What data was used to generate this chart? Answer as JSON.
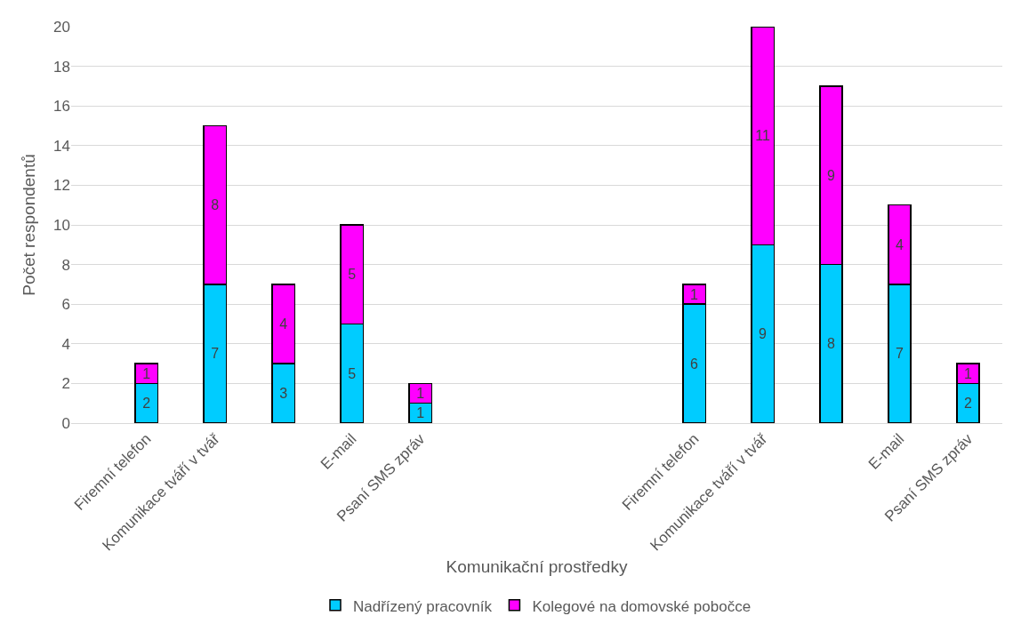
{
  "chart_data": {
    "type": "bar",
    "stacked": true,
    "ylabel": "Počet respondentů",
    "xlabel": "Komunikační prostředky",
    "categories": [
      "Firemní telefon",
      "Komunikace tváří v tvář",
      null,
      "E-mail",
      "Psaní SMS zpráv",
      null,
      null,
      null,
      "Firemní telefon",
      "Komunikace tváří v tvář",
      null,
      "E-mail",
      "Psaní SMS zpráv"
    ],
    "series": [
      {
        "name": "Nadřízený pracovník",
        "color": "#00ccff",
        "values": [
          2,
          7,
          3,
          5,
          1,
          null,
          null,
          null,
          6,
          9,
          8,
          7,
          2
        ]
      },
      {
        "name": "Kolegové na domovské pobočce",
        "color": "#ff00ff",
        "values": [
          1,
          8,
          4,
          5,
          1,
          null,
          null,
          null,
          1,
          11,
          9,
          4,
          1
        ]
      }
    ],
    "ylim": [
      0,
      20
    ],
    "yticks": [
      0,
      2,
      4,
      6,
      8,
      10,
      12,
      14,
      16,
      18,
      20
    ],
    "grid": "y",
    "legend": "bottom",
    "data_labels": true
  }
}
